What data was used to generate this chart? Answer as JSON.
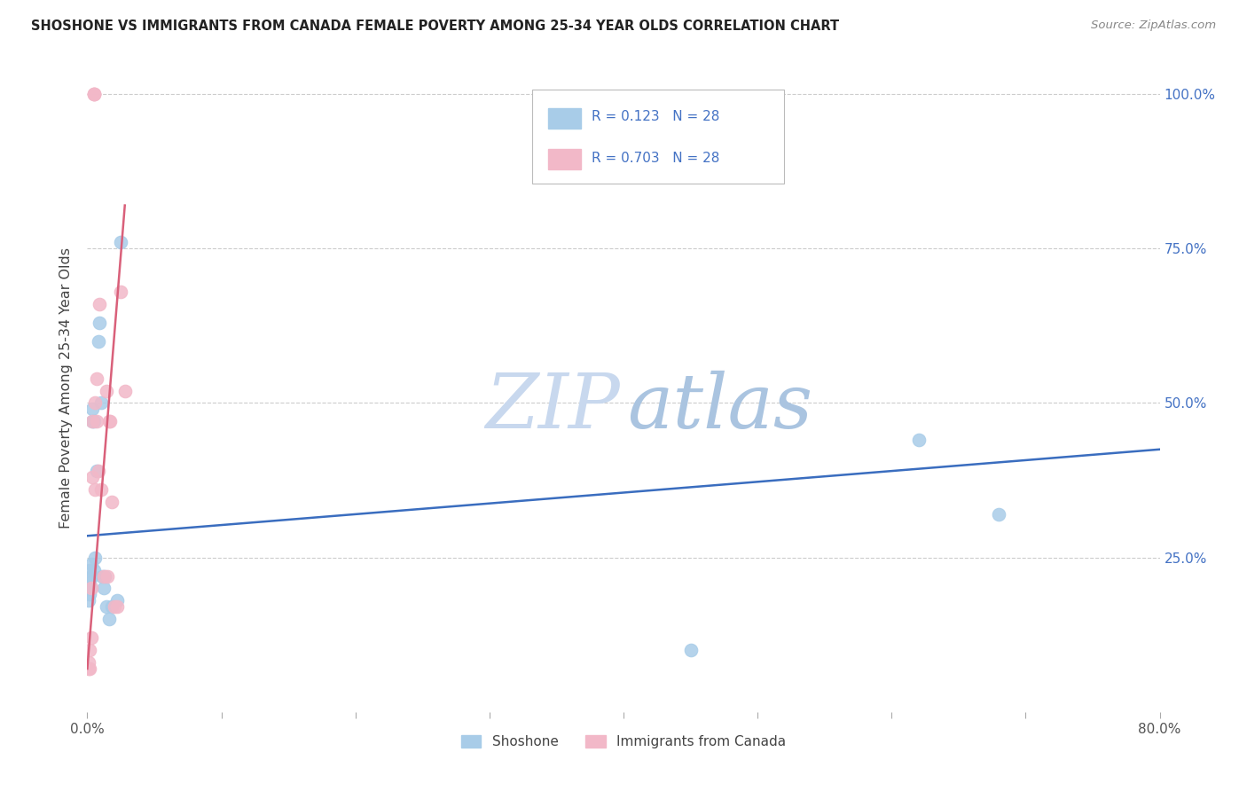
{
  "title": "SHOSHONE VS IMMIGRANTS FROM CANADA FEMALE POVERTY AMONG 25-34 YEAR OLDS CORRELATION CHART",
  "source": "Source: ZipAtlas.com",
  "ylabel": "Female Poverty Among 25-34 Year Olds",
  "xlim": [
    0.0,
    0.8
  ],
  "ylim": [
    0.0,
    1.05
  ],
  "legend_blue_r": "0.123",
  "legend_blue_n": "28",
  "legend_pink_r": "0.703",
  "legend_pink_n": "28",
  "legend_label_blue": "Shoshone",
  "legend_label_pink": "Immigrants from Canada",
  "blue_scatter_color": "#a8cce8",
  "pink_scatter_color": "#f2b8c8",
  "blue_line_color": "#3a6dbf",
  "pink_line_color": "#d9607a",
  "background_color": "#ffffff",
  "grid_color": "#cccccc",
  "right_tick_color": "#4472c4",
  "watermark_zip_color": "#c8d8ee",
  "watermark_atlas_color": "#aac4e0",
  "shoshone_x": [
    0.001,
    0.001,
    0.002,
    0.002,
    0.002,
    0.003,
    0.003,
    0.003,
    0.004,
    0.004,
    0.005,
    0.005,
    0.006,
    0.007,
    0.008,
    0.009,
    0.01,
    0.011,
    0.012,
    0.013,
    0.014,
    0.016,
    0.018,
    0.022,
    0.025,
    0.45,
    0.62,
    0.68
  ],
  "shoshone_y": [
    0.18,
    0.2,
    0.19,
    0.21,
    0.23,
    0.22,
    0.24,
    0.2,
    0.47,
    0.49,
    0.23,
    0.47,
    0.25,
    0.39,
    0.6,
    0.63,
    0.5,
    0.22,
    0.2,
    0.22,
    0.17,
    0.15,
    0.17,
    0.18,
    0.76,
    0.1,
    0.44,
    0.32
  ],
  "canada_x": [
    0.001,
    0.001,
    0.002,
    0.002,
    0.003,
    0.003,
    0.004,
    0.004,
    0.005,
    0.005,
    0.005,
    0.006,
    0.006,
    0.007,
    0.007,
    0.008,
    0.009,
    0.01,
    0.012,
    0.014,
    0.015,
    0.016,
    0.017,
    0.018,
    0.02,
    0.022,
    0.025,
    0.028
  ],
  "canada_y": [
    0.07,
    0.08,
    0.07,
    0.1,
    0.12,
    0.2,
    0.38,
    0.47,
    1.0,
    1.0,
    1.0,
    0.36,
    0.5,
    0.47,
    0.54,
    0.39,
    0.66,
    0.36,
    0.22,
    0.52,
    0.22,
    0.47,
    0.47,
    0.34,
    0.17,
    0.17,
    0.68,
    0.52
  ],
  "blue_line_x0": 0.0,
  "blue_line_x1": 0.8,
  "blue_line_y0": 0.285,
  "blue_line_y1": 0.425,
  "pink_line_x0": 0.0,
  "pink_line_x1": 0.028,
  "pink_line_y0": 0.07,
  "pink_line_y1": 0.82
}
